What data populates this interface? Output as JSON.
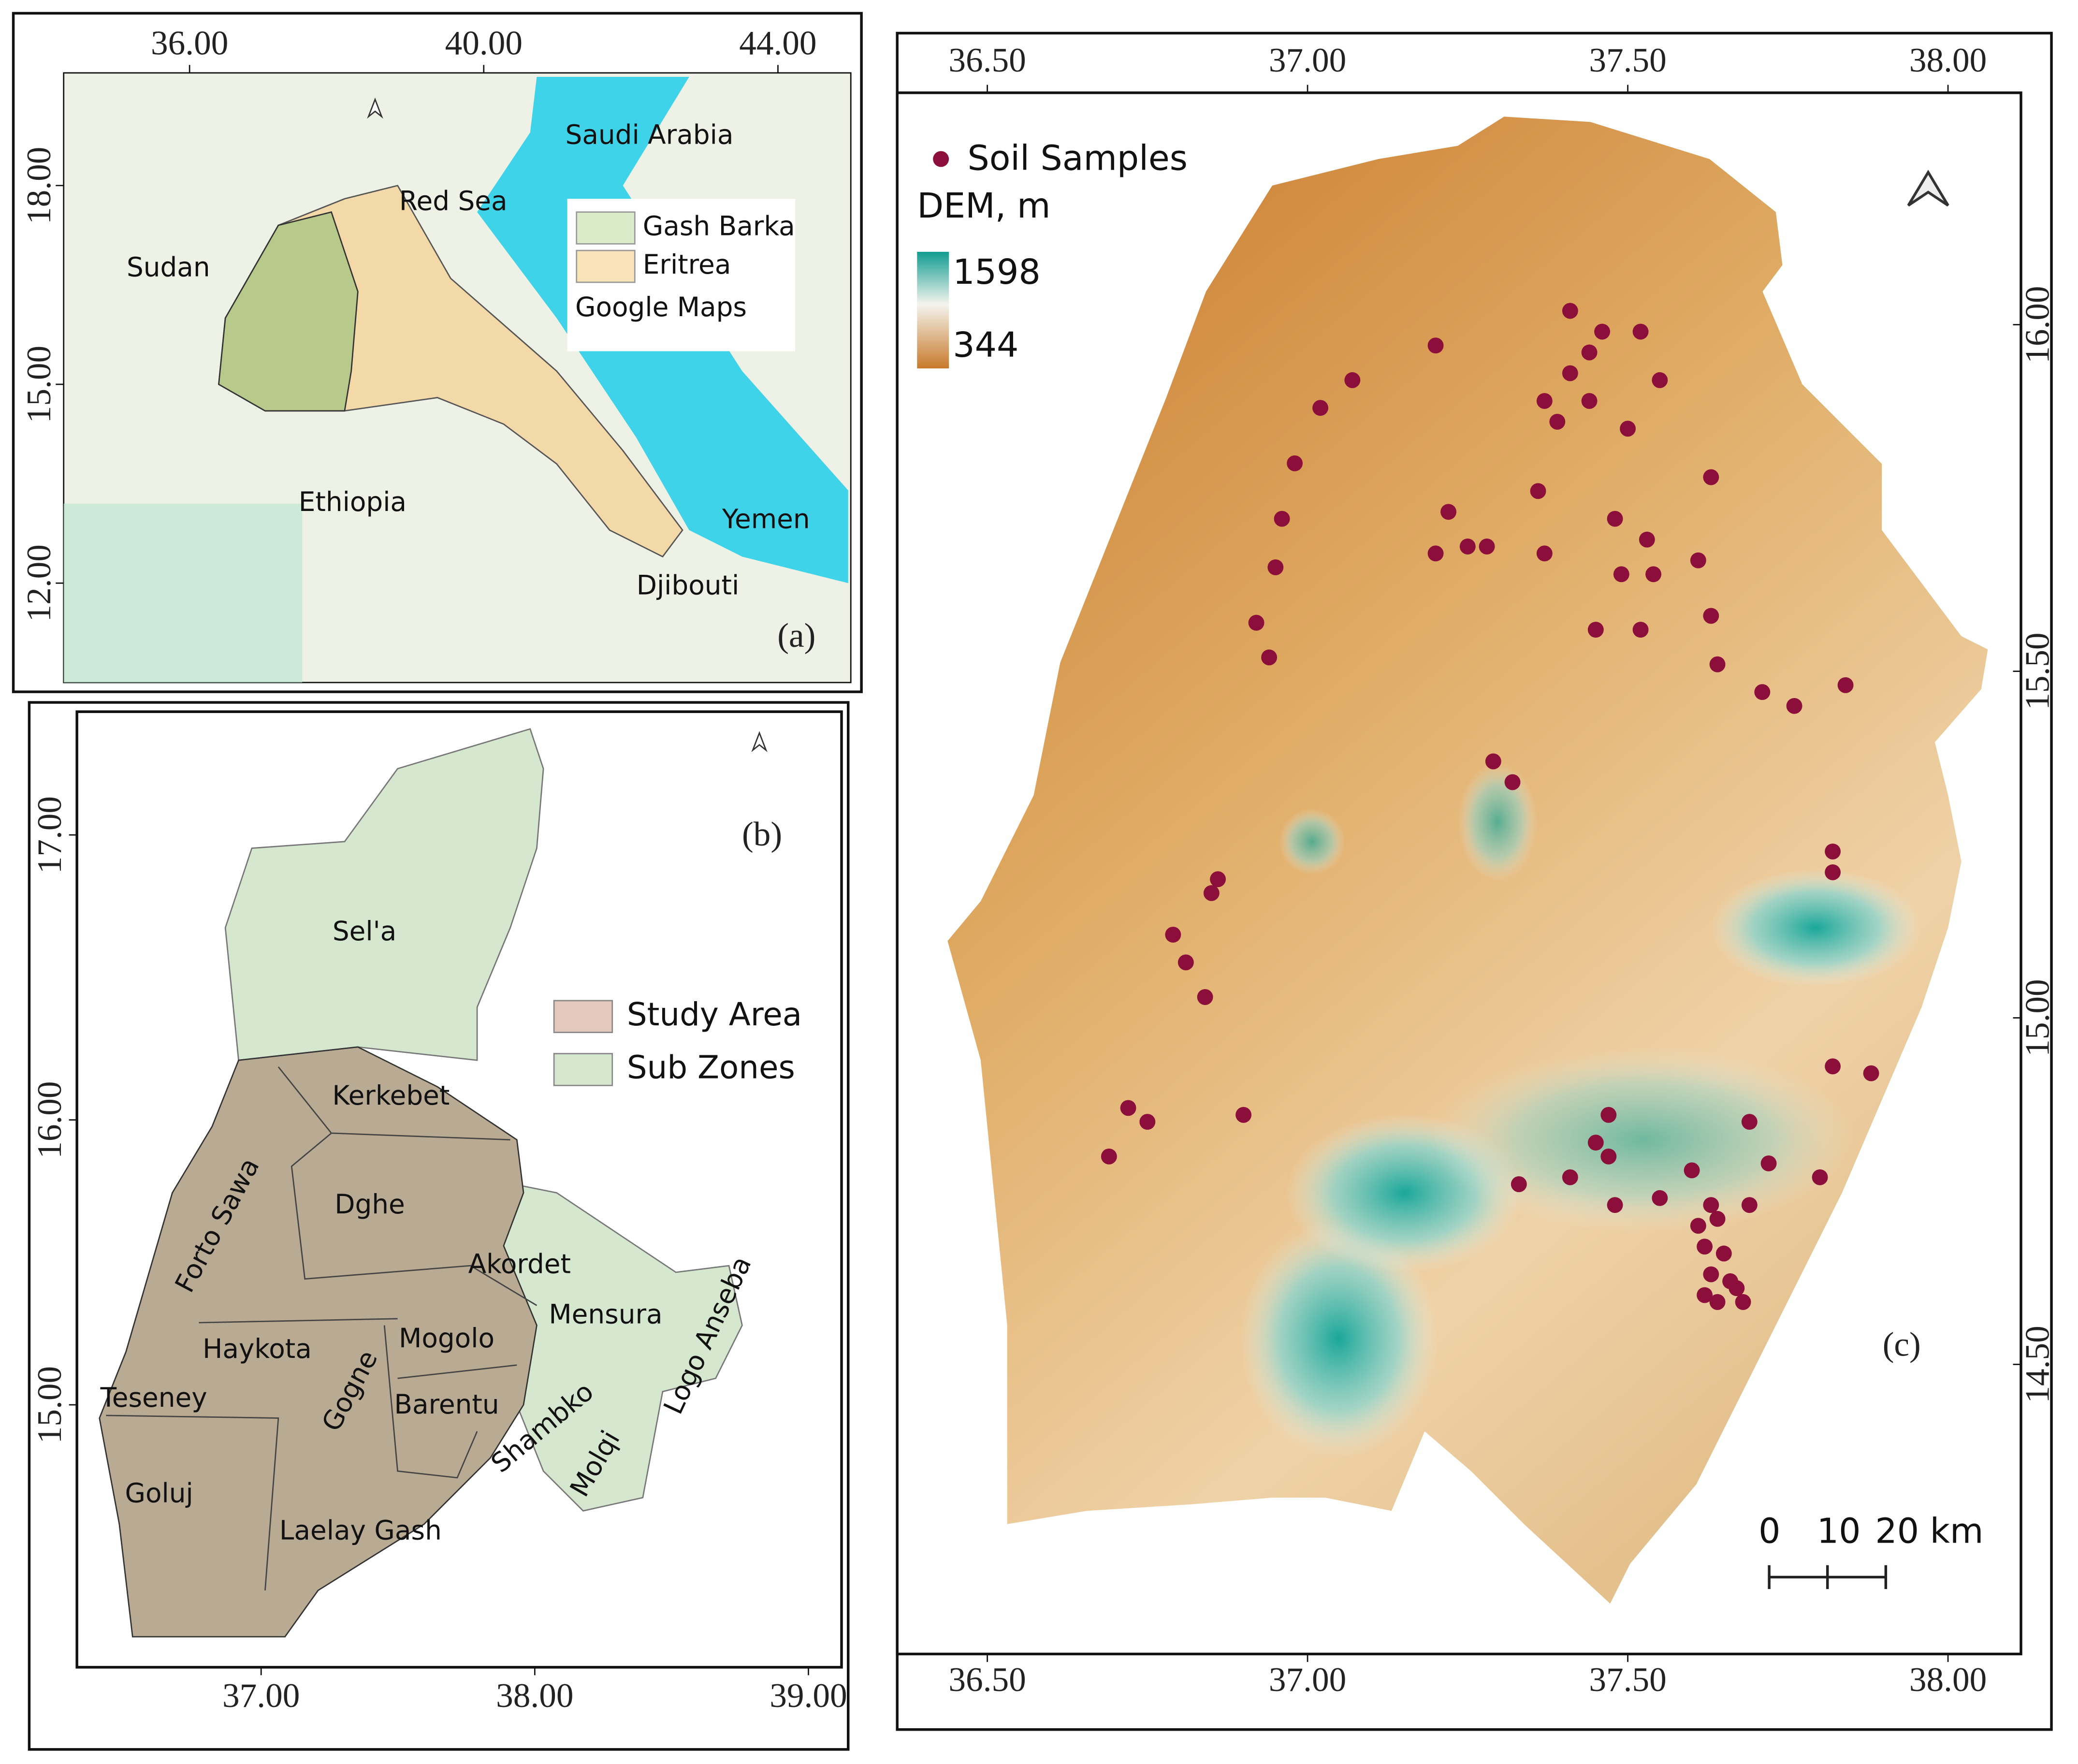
{
  "panel_a": {
    "label": "(a)",
    "lon_ticks": [
      {
        "value": 36,
        "label": "36.00"
      },
      {
        "value": 40,
        "label": "40.00"
      },
      {
        "value": 44,
        "label": "44.00"
      }
    ],
    "lat_ticks": [
      {
        "value": 18,
        "label": "18.00"
      },
      {
        "value": 15,
        "label": "15.00"
      },
      {
        "value": 12,
        "label": "12.00"
      }
    ],
    "places": [
      "Saudi Arabia",
      "Red Sea",
      "Sudan",
      "Ethiopia",
      "Yemen",
      "Djibouti"
    ],
    "legend": [
      "Gash Barka",
      "Eritrea"
    ],
    "source": "Google Maps"
  },
  "panel_b": {
    "label": "(b)",
    "lon_ticks": [
      {
        "value": 37,
        "label": "37.00"
      },
      {
        "value": 38,
        "label": "38.00"
      },
      {
        "value": 39,
        "label": "39.00"
      }
    ],
    "lat_ticks": [
      {
        "value": 17,
        "label": "17.00"
      },
      {
        "value": 16,
        "label": "16.00"
      },
      {
        "value": 15,
        "label": "15.00"
      }
    ],
    "legend": [
      "Study Area",
      "Sub Zones"
    ],
    "study_area_zones": [
      "Kerkebet",
      "Forto Sawa",
      "Dghe",
      "Akordet",
      "Haykota",
      "Mogolo",
      "Teseney",
      "Gogne",
      "Barentu",
      "Goluj",
      "Laelay Gash",
      "Shambko"
    ],
    "other_zones": [
      "Sel'a",
      "Mensura",
      "Logo Anseba",
      "Molqi"
    ]
  },
  "panel_c": {
    "label": "(c)",
    "lon_ticks": [
      {
        "value": 36.5,
        "label": "36.50"
      },
      {
        "value": 37,
        "label": "37.00"
      },
      {
        "value": 37.5,
        "label": "37.50"
      },
      {
        "value": 38,
        "label": "38.00"
      }
    ],
    "lat_ticks": [
      {
        "value": 16,
        "label": "16.00"
      },
      {
        "value": 15.5,
        "label": "15.50"
      },
      {
        "value": 15,
        "label": "15.00"
      },
      {
        "value": 14.5,
        "label": "14.50"
      }
    ],
    "samples_label": "Soil Samples",
    "sample_color": "#8b0f3a",
    "dem_title": "DEM, m",
    "dem_max": 1598,
    "dem_min": 344,
    "scale_bar": [
      0,
      10,
      {
        "value": 20,
        "label": "20 km"
      }
    ],
    "samples": {
      "lon": [
        37.07,
        37.2,
        37.02,
        36.98,
        36.96,
        36.95,
        36.92,
        36.94,
        37.41,
        37.46,
        37.52,
        37.44,
        37.41,
        37.55,
        37.37,
        37.44,
        37.39,
        37.5,
        37.63,
        37.22,
        37.2,
        37.25,
        37.28,
        37.36,
        37.37,
        37.48,
        37.53,
        37.49,
        37.54,
        37.61,
        37.45,
        37.52,
        37.63,
        37.64,
        37.71,
        37.76,
        37.84,
        37.29,
        37.32,
        37.82,
        37.82,
        36.86,
        36.85,
        36.79,
        36.81,
        36.84,
        37.82,
        37.88,
        36.72,
        36.75,
        36.69,
        36.9,
        37.47,
        37.45,
        37.47,
        37.33,
        37.41,
        37.48,
        37.55,
        37.6,
        37.69,
        37.72,
        37.8,
        37.63,
        37.69,
        37.61,
        37.64,
        37.62,
        37.65,
        37.63,
        37.66,
        37.62,
        37.67,
        37.64,
        37.68
      ],
      "lat": [
        15.92,
        15.97,
        15.88,
        15.8,
        15.72,
        15.65,
        15.57,
        15.52,
        16.02,
        15.99,
        15.99,
        15.96,
        15.93,
        15.92,
        15.89,
        15.89,
        15.86,
        15.85,
        15.78,
        15.73,
        15.67,
        15.68,
        15.68,
        15.76,
        15.67,
        15.72,
        15.69,
        15.64,
        15.64,
        15.66,
        15.56,
        15.56,
        15.58,
        15.51,
        15.47,
        15.45,
        15.48,
        15.37,
        15.34,
        15.24,
        15.21,
        15.2,
        15.18,
        15.12,
        15.08,
        15.03,
        14.93,
        14.92,
        14.87,
        14.85,
        14.8,
        14.86,
        14.86,
        14.82,
        14.8,
        14.76,
        14.77,
        14.73,
        14.74,
        14.78,
        14.85,
        14.79,
        14.77,
        14.73,
        14.73,
        14.7,
        14.71,
        14.67,
        14.66,
        14.63,
        14.62,
        14.6,
        14.61,
        14.59,
        14.59
      ]
    }
  }
}
